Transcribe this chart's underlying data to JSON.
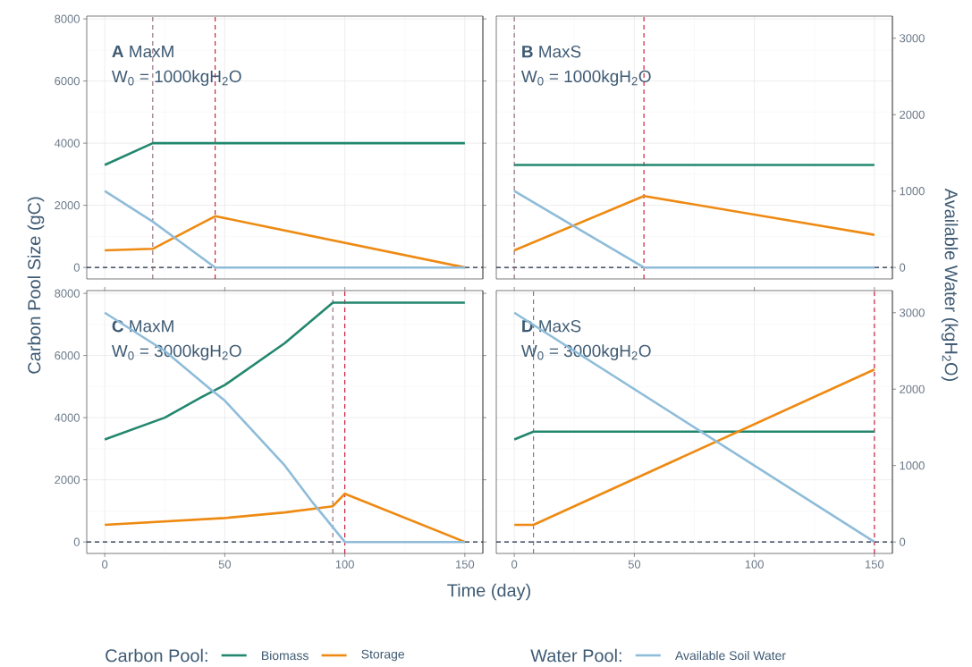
{
  "chart_data": [
    {
      "type": "line",
      "ylabel": "Carbon Pool Size (gC)",
      "annotations": [
        "**A** MaxM",
        "W$_{0}$ = 1000kgH$_{2}$O"
      ],
      "xlim": [
        -7.5,
        157.5
      ],
      "ylim": [
        -370,
        8090
      ],
      "yticks": [
        0,
        2000,
        4000,
        6000,
        8000
      ],
      "y2lim": [
        -150,
        3290
      ],
      "tick_labels": "y",
      "grid": true,
      "series": [
        {
          "color": "#23876e",
          "x": [
            0,
            20,
            150
          ],
          "values": [
            3300,
            4000,
            4000
          ]
        },
        {
          "color": "#ee8a12",
          "x": [
            0,
            20,
            46,
            150
          ],
          "values": [
            550,
            600,
            1650,
            0
          ]
        },
        {
          "color": "#8ebcd9",
          "axis": "y2",
          "x": [
            0,
            20,
            46,
            150
          ],
          "values": [
            1000,
            600,
            0,
            0
          ]
        }
      ],
      "ref_lines": [
        {
          "axis": "y",
          "value": 0,
          "color": "#1b2a44",
          "line_style": "dashed"
        },
        {
          "axis": "x",
          "value": 20,
          "color": "#8c6478",
          "line_style": "dashed"
        },
        {
          "axis": "x",
          "value": 46,
          "color": "#c8102e",
          "line_style": "dashed"
        }
      ]
    },
    {
      "type": "line",
      "y2label": "Available Water (kgH$_{2}$O)",
      "annotations": [
        "**B** MaxS",
        "W$_{0}$ = 1000kgH$_{2}$O"
      ],
      "xlim": [
        -7.5,
        157.5
      ],
      "ylim": [
        -370,
        8090
      ],
      "y2lim": [
        -150,
        3290
      ],
      "y2ticks": [
        0,
        1000,
        2000,
        3000
      ],
      "tick_labels": "y2",
      "grid": true,
      "series": [
        {
          "color": "#23876e",
          "x": [
            0,
            150
          ],
          "values": [
            3300,
            3300
          ]
        },
        {
          "color": "#ee8a12",
          "x": [
            0,
            54,
            150
          ],
          "values": [
            550,
            2300,
            1050
          ]
        },
        {
          "color": "#8ebcd9",
          "axis": "y2",
          "x": [
            0,
            54,
            150
          ],
          "values": [
            1000,
            0,
            0
          ]
        }
      ],
      "ref_lines": [
        {
          "axis": "y",
          "value": 0,
          "color": "#1b2a44",
          "line_style": "dashed"
        },
        {
          "axis": "x",
          "value": 0,
          "color": "#8c6478",
          "line_style": "dashed"
        },
        {
          "axis": "x",
          "value": 54,
          "color": "#c8102e",
          "line_style": "dashed"
        }
      ]
    },
    {
      "type": "line",
      "xlabel": "Time (day)",
      "legend_title": "Carbon Pool:",
      "legend": "bottom",
      "annotations": [
        "**C** MaxM",
        "W$_{0}$ = 3000kgH$_{2}$O"
      ],
      "xlim": [
        -7.5,
        157.5
      ],
      "xticks": [
        0,
        50,
        100,
        150
      ],
      "ylim": [
        -370,
        8090
      ],
      "yticks": [
        0,
        2000,
        4000,
        6000,
        8000
      ],
      "y2lim": [
        -150,
        3290
      ],
      "tick_labels": "xy",
      "grid": true,
      "series": [
        {
          "name": "Biomass",
          "color": "#23876e",
          "x": [
            0,
            25,
            40,
            50,
            75,
            95,
            150
          ],
          "values": [
            3300,
            4000,
            4650,
            5050,
            6400,
            7700,
            7700
          ]
        },
        {
          "name": "Storage",
          "color": "#ee8a12",
          "x": [
            0,
            50,
            75,
            95,
            100,
            150
          ],
          "values": [
            550,
            770,
            950,
            1150,
            1550,
            0
          ]
        },
        {
          "color": "#8ebcd9",
          "axis": "y2",
          "x": [
            0,
            25,
            44,
            50,
            75,
            87,
            100,
            150
          ],
          "values": [
            3000,
            2500,
            2000,
            1850,
            1000,
            500,
            0,
            0
          ]
        }
      ],
      "ref_lines": [
        {
          "axis": "y",
          "value": 0,
          "color": "#1b2a44",
          "line_style": "dashed"
        },
        {
          "axis": "x",
          "value": 95,
          "color": "#8c6478",
          "line_style": "dashed"
        },
        {
          "axis": "x",
          "value": 100,
          "color": "#c8102e",
          "line_style": "dashed"
        }
      ]
    },
    {
      "type": "line",
      "legend_title": "Water Pool:",
      "legend": "bottom",
      "annotations": [
        "**D** MaxS",
        "W$_{0}$ = 3000kgH$_{2}$O"
      ],
      "xlim": [
        -7.5,
        157.5
      ],
      "xticks": [
        0,
        50,
        100,
        150
      ],
      "ylim": [
        -370,
        8090
      ],
      "y2lim": [
        -150,
        3290
      ],
      "y2ticks": [
        0,
        1000,
        2000,
        3000
      ],
      "tick_labels": "xy2",
      "grid": true,
      "series": [
        {
          "color": "#23876e",
          "x": [
            0,
            8,
            150
          ],
          "values": [
            3300,
            3550,
            3550
          ]
        },
        {
          "color": "#ee8a12",
          "x": [
            0,
            8,
            150
          ],
          "values": [
            550,
            550,
            5550
          ]
        },
        {
          "name": "Available Soil Water",
          "color": "#8ebcd9",
          "axis": "y2",
          "x": [
            0,
            150
          ],
          "values": [
            3000,
            0
          ]
        }
      ],
      "ref_lines": [
        {
          "axis": "y",
          "value": 0,
          "color": "#1b2a44",
          "line_style": "dashed"
        },
        {
          "axis": "x",
          "value": 8,
          "color": "#8c6478",
          "line_style": "dashed"
        },
        {
          "axis": "x",
          "value": 150,
          "color": "#c8102e",
          "line_style": "dashed"
        }
      ]
    }
  ]
}
